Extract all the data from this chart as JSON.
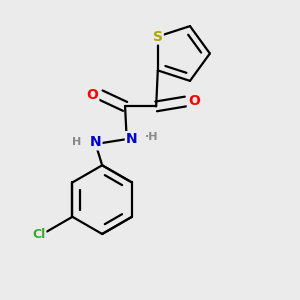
{
  "background_color": "#ebebeb",
  "bond_color": "#000000",
  "atom_colors": {
    "S": "#aaaa00",
    "O": "#ff0000",
    "N": "#0000cc",
    "Cl": "#33aa33",
    "C": "#000000",
    "H": "#888888"
  },
  "bond_width": 1.6,
  "figsize": [
    3.0,
    3.0
  ],
  "dpi": 100
}
